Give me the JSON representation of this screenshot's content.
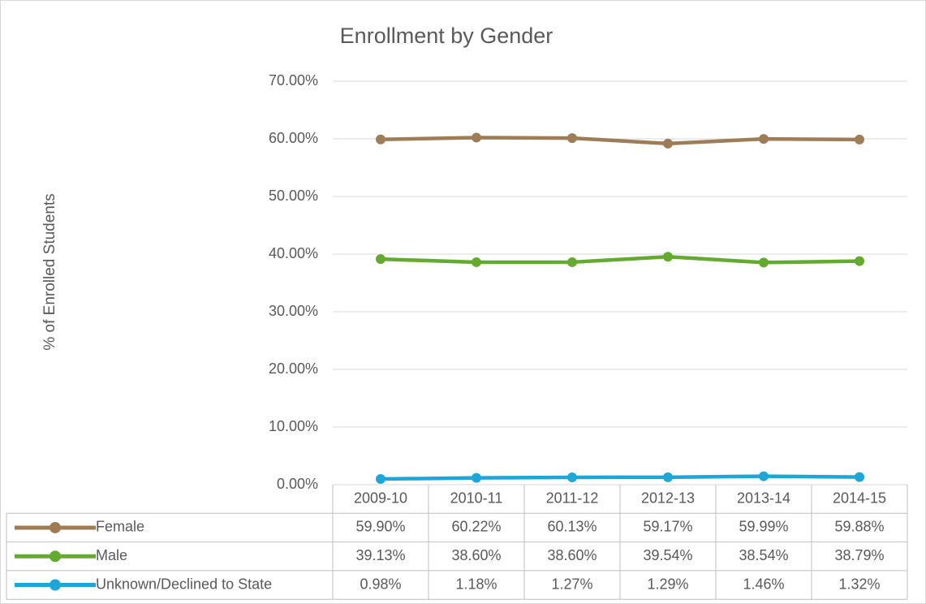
{
  "chart_data": {
    "type": "line",
    "title": "Enrollment by Gender",
    "y_label": "% of Enrolled Students",
    "categories": [
      "2009-10",
      "2010-11",
      "2011-12",
      "2012-13",
      "2013-14",
      "2014-15"
    ],
    "series": [
      {
        "name": "Female",
        "color": "#9e7c56",
        "values": [
          59.9,
          60.22,
          60.13,
          59.17,
          59.99,
          59.88
        ],
        "value_labels": [
          "59.90%",
          "60.22%",
          "60.13%",
          "59.17%",
          "59.99%",
          "59.88%"
        ]
      },
      {
        "name": "Male",
        "color": "#64aa2f",
        "values": [
          39.13,
          38.6,
          38.6,
          39.54,
          38.54,
          38.79
        ],
        "value_labels": [
          "39.13%",
          "38.60%",
          "38.60%",
          "39.54%",
          "38.54%",
          "38.79%"
        ]
      },
      {
        "name": "Unknown/Declined to State",
        "color": "#1ea6d8",
        "values": [
          0.98,
          1.18,
          1.27,
          1.29,
          1.46,
          1.32
        ],
        "value_labels": [
          "0.98%",
          "1.18%",
          "1.27%",
          "1.29%",
          "1.46%",
          "1.32%"
        ]
      }
    ],
    "ylim": [
      0,
      70
    ],
    "yticks": [
      {
        "value": 0,
        "label": "0.00%"
      },
      {
        "value": 10,
        "label": "10.00%"
      },
      {
        "value": 20,
        "label": "20.00%"
      },
      {
        "value": 30,
        "label": "30.00%"
      },
      {
        "value": 40,
        "label": "40.00%"
      },
      {
        "value": 50,
        "label": "50.00%"
      },
      {
        "value": 60,
        "label": "60.00%"
      },
      {
        "value": 70,
        "label": "70.00%"
      }
    ],
    "grid": true
  }
}
